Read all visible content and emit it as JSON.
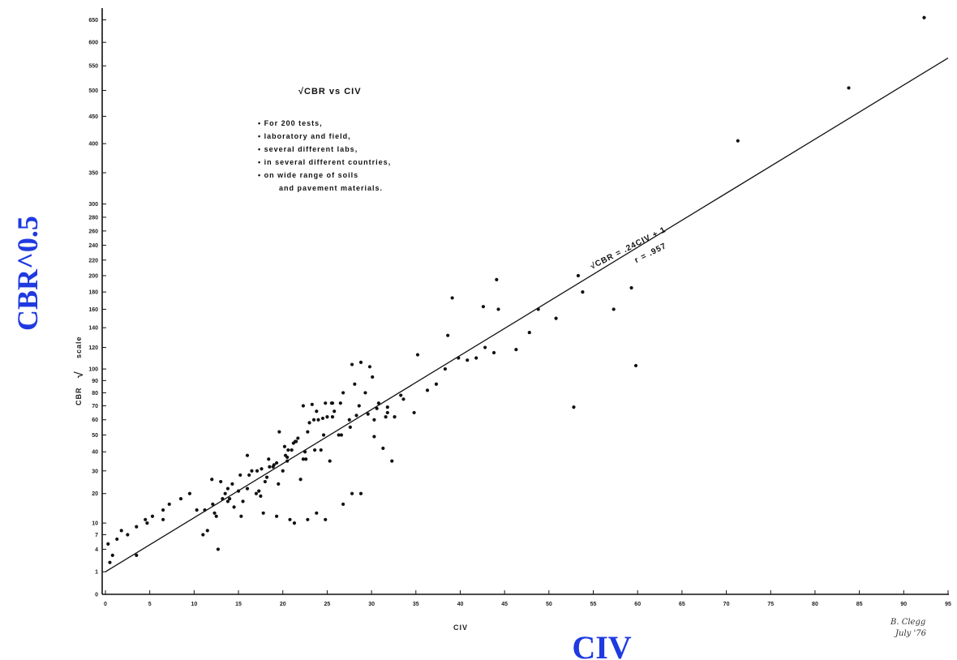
{
  "chart_data": {
    "type": "scatter",
    "title": "√CBR vs CIV",
    "xlabel": "CIV",
    "ylabel": "CBR",
    "ylabel_scale_note": "scale",
    "xlim": [
      0,
      95
    ],
    "ylim": [
      0,
      660
    ],
    "y_scale": "sqrt",
    "grid": false,
    "legend": "none",
    "x_ticks": [
      "0",
      "5",
      "10",
      "15",
      "20",
      "25",
      "30",
      "35",
      "40",
      "45",
      "50",
      "55",
      "60",
      "65",
      "70",
      "75",
      "80",
      "85",
      "90",
      "95"
    ],
    "y_ticks": [
      "0",
      "1",
      "4",
      "7",
      "10",
      "20",
      "30",
      "40",
      "50",
      "60",
      "70",
      "80",
      "90",
      "100",
      "120",
      "140",
      "160",
      "180",
      "200",
      "220",
      "240",
      "260",
      "280",
      "300",
      "350",
      "400",
      "450",
      "500",
      "550",
      "600",
      "650"
    ],
    "annotations": [
      "• For 200 tests,",
      "• laboratory and field,",
      "• several different labs,",
      "• in several different countries,",
      "• on wide range of soils",
      "and pavement materials."
    ],
    "regression": {
      "equation": "√CBR = .24CIV + 1",
      "r": "r = .957",
      "slope": 0.24,
      "intercept": 1
    },
    "signature": [
      "B. Clegg",
      "July '76"
    ],
    "series": [
      {
        "x": [
          0.3,
          0.5,
          0.8,
          1.3,
          1.8,
          2.5,
          3.5,
          4.5,
          5.3,
          6.5,
          3.5,
          4.7,
          6.5,
          7.2,
          8.5,
          9.5,
          10.3,
          11.0,
          11.5,
          12.1,
          12.7,
          13.2,
          13.8,
          14.3,
          15.2,
          16.0,
          17.1,
          18.2,
          19.3,
          20.5,
          12.0,
          13.0,
          14.0,
          15.0,
          16.0,
          17.0,
          18.0,
          19.0,
          20.0,
          21.0,
          22.0,
          23.0,
          24.0,
          25.0,
          12.5,
          13.5,
          14.5,
          15.5,
          16.5,
          17.5,
          18.5,
          19.5,
          20.5,
          21.5,
          22.5,
          23.5,
          24.5,
          25.5,
          26.5,
          27.5,
          16.2,
          17.3,
          18.4,
          19.6,
          20.6,
          21.7,
          22.8,
          23.8,
          24.8,
          25.8,
          26.8,
          27.8,
          28.8,
          29.8,
          30.8,
          31.8,
          20.3,
          21.4,
          22.6,
          23.6,
          24.6,
          25.6,
          26.6,
          27.6,
          28.6,
          29.6,
          30.6,
          31.6,
          32.6,
          33.6,
          17.6,
          18.9,
          20.2,
          21.2,
          22.3,
          23.3,
          24.3,
          25.3,
          29.3,
          30.3,
          31.3,
          32.3,
          33.3,
          20.8,
          22.8,
          24.8,
          26.8,
          27.8,
          28.8,
          34.8,
          36.3,
          37.3,
          38.3,
          39.8,
          40.8,
          41.8,
          42.8,
          43.8,
          44.3,
          46.3,
          47.8,
          48.8,
          50.8,
          52.8,
          53.3,
          53.8,
          57.3,
          59.3,
          59.8,
          71.3,
          83.8,
          92.3,
          11.2,
          12.3,
          13.8,
          15.3,
          17.8,
          19.3,
          21.3,
          23.8,
          26.3,
          28.3,
          30.3,
          31.8,
          22.3,
          25.6,
          28.1,
          30.1,
          35.2,
          38.6,
          39.1,
          42.6,
          44.1
        ],
        "y": [
          5,
          2,
          3,
          6,
          8,
          7,
          9,
          11,
          12,
          14,
          3,
          10,
          11,
          16,
          18,
          20,
          14,
          7,
          8,
          16,
          4,
          18,
          22,
          24,
          28,
          22,
          30,
          27,
          34,
          35,
          26,
          25,
          18,
          21,
          38,
          20,
          25,
          33,
          30,
          41,
          26,
          58,
          60,
          62,
          12,
          20,
          15,
          17,
          30,
          19,
          32,
          24,
          37,
          46,
          40,
          60,
          61,
          72,
          72,
          60,
          28,
          21,
          36,
          52,
          41,
          48,
          52,
          66,
          72,
          66,
          80,
          104,
          106,
          102,
          72,
          65,
          38,
          46,
          36,
          41,
          50,
          62,
          50,
          55,
          70,
          64,
          68,
          62,
          62,
          75,
          31,
          32,
          43,
          45,
          36,
          71,
          41,
          35,
          80,
          60,
          42,
          35,
          78,
          11,
          11,
          11,
          16,
          20,
          20,
          65,
          82,
          87,
          100,
          110,
          108,
          110,
          120,
          115,
          160,
          118,
          135,
          160,
          150,
          69,
          200,
          180,
          160,
          185,
          103,
          405,
          505,
          655,
          14,
          13,
          17,
          12,
          13,
          12,
          10,
          13,
          50,
          63,
          49,
          69,
          70,
          72,
          87,
          93,
          113,
          132,
          173,
          163,
          195
        ]
      }
    ]
  }
}
